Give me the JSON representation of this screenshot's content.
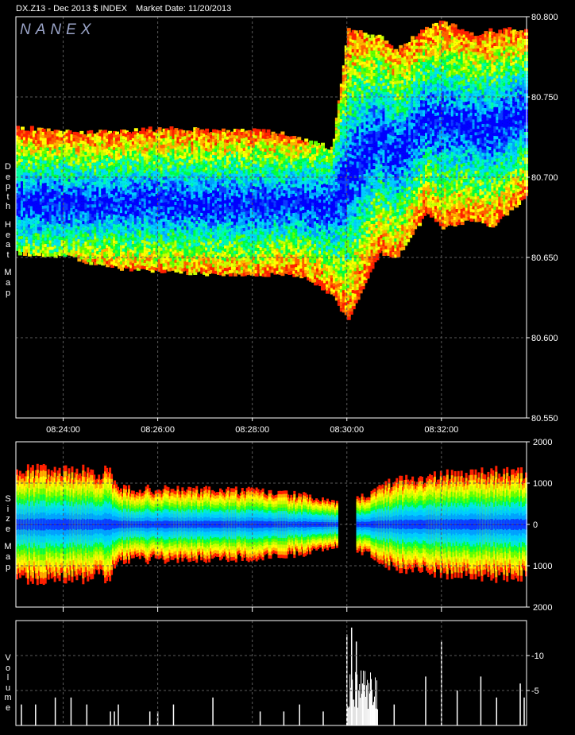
{
  "header": {
    "symbol": "DX.Z13 - Dec 2013 $ INDEX",
    "market_date": "Market Date: 11/20/2013"
  },
  "logo_text": "NANEX",
  "panels": {
    "depth": {
      "label_words": [
        "Depth",
        "Heat",
        "Map"
      ]
    },
    "size": {
      "label_words": [
        "Size",
        "Map"
      ]
    },
    "volume": {
      "label_words": [
        "Volume"
      ]
    }
  },
  "colors": {
    "background": "#000000",
    "frame": "#ffffff",
    "grid": "#5a5a5a",
    "heat_scale": [
      "#0000ff",
      "#0a3cff",
      "#00a0ff",
      "#00ccff",
      "#00e6e6",
      "#00ffa0",
      "#00ff40",
      "#60ff00",
      "#c8ff00",
      "#ffff00",
      "#ffb000",
      "#ff6000",
      "#ff2000"
    ]
  },
  "chart_data": [
    {
      "type": "heatmap",
      "title": "Depth Heat Map",
      "x_ticks": [
        "08:24:00",
        "08:26:00",
        "08:28:00",
        "08:30:00",
        "08:32:00"
      ],
      "y_ticks": [
        "80.800",
        "80.750",
        "80.700",
        "80.650",
        "80.600",
        "80.550"
      ],
      "ylim": [
        80.55,
        80.8
      ],
      "xlim": [
        "08:23:00",
        "08:33:48"
      ],
      "grid": true,
      "series": [
        {
          "time": "08:23:00",
          "band_low": 80.654,
          "band_high": 80.728,
          "center": 80.683
        },
        {
          "time": "08:24:00",
          "band_low": 80.652,
          "band_high": 80.726,
          "center": 80.682
        },
        {
          "time": "08:25:00",
          "band_low": 80.645,
          "band_high": 80.725,
          "center": 80.683
        },
        {
          "time": "08:26:00",
          "band_low": 80.643,
          "band_high": 80.728,
          "center": 80.683
        },
        {
          "time": "08:27:00",
          "band_low": 80.641,
          "band_high": 80.727,
          "center": 80.682
        },
        {
          "time": "08:28:00",
          "band_low": 80.641,
          "band_high": 80.727,
          "center": 80.682
        },
        {
          "time": "08:29:00",
          "band_low": 80.64,
          "band_high": 80.722,
          "center": 80.683
        },
        {
          "time": "08:29:40",
          "band_low": 80.628,
          "band_high": 80.715,
          "center": 80.68
        },
        {
          "time": "08:30:00",
          "band_low": 80.612,
          "band_high": 80.79,
          "center": 80.7
        },
        {
          "time": "08:30:40",
          "band_low": 80.655,
          "band_high": 80.785,
          "center": 80.725
        },
        {
          "time": "08:31:00",
          "band_low": 80.65,
          "band_high": 80.776,
          "center": 80.711
        },
        {
          "time": "08:31:40",
          "band_low": 80.68,
          "band_high": 80.79,
          "center": 80.735
        },
        {
          "time": "08:32:00",
          "band_low": 80.67,
          "band_high": 80.795,
          "center": 80.732
        },
        {
          "time": "08:32:40",
          "band_low": 80.675,
          "band_high": 80.785,
          "center": 80.73
        },
        {
          "time": "08:33:00",
          "band_low": 80.67,
          "band_high": 80.788,
          "center": 80.728
        },
        {
          "time": "08:33:48",
          "band_low": 80.69,
          "band_high": 80.79,
          "center": 80.74
        }
      ]
    },
    {
      "type": "heatmap",
      "title": "Size Map",
      "x_ticks": [
        "08:24:00",
        "08:26:00",
        "08:28:00",
        "08:30:00",
        "08:32:00"
      ],
      "y_ticks": [
        "2000",
        "1000",
        "0",
        "1000",
        "2000"
      ],
      "ylim": [
        -2000,
        2000
      ],
      "grid": true,
      "series": [
        {
          "time": "08:23:00",
          "size": 1300
        },
        {
          "time": "08:25:00",
          "size": 1250
        },
        {
          "time": "08:25:05",
          "size": 850
        },
        {
          "time": "08:27:00",
          "size": 820
        },
        {
          "time": "08:28:00",
          "size": 800
        },
        {
          "time": "08:29:00",
          "size": 700
        },
        {
          "time": "08:29:46",
          "size": 500
        },
        {
          "time": "08:30:10",
          "size": 0
        },
        {
          "time": "08:30:12",
          "size": 600
        },
        {
          "time": "08:31:00",
          "size": 1050
        },
        {
          "time": "08:32:00",
          "size": 1150
        },
        {
          "time": "08:33:00",
          "size": 1250
        },
        {
          "time": "08:33:48",
          "size": 1200
        }
      ]
    },
    {
      "type": "bar",
      "title": "Volume",
      "y_ticks": [
        "10",
        "5"
      ],
      "ylim": [
        0,
        15
      ],
      "grid": true,
      "bars": [
        {
          "time": "08:23:07",
          "v": 3
        },
        {
          "time": "08:23:25",
          "v": 3
        },
        {
          "time": "08:23:50",
          "v": 4
        },
        {
          "time": "08:24:10",
          "v": 4
        },
        {
          "time": "08:24:30",
          "v": 3
        },
        {
          "time": "08:25:00",
          "v": 2
        },
        {
          "time": "08:25:05",
          "v": 2
        },
        {
          "time": "08:25:10",
          "v": 3
        },
        {
          "time": "08:25:50",
          "v": 2
        },
        {
          "time": "08:26:00",
          "v": 2
        },
        {
          "time": "08:26:20",
          "v": 3
        },
        {
          "time": "08:27:10",
          "v": 4
        },
        {
          "time": "08:28:10",
          "v": 2
        },
        {
          "time": "08:28:40",
          "v": 2
        },
        {
          "time": "08:29:00",
          "v": 3
        },
        {
          "time": "08:29:30",
          "v": 2
        },
        {
          "time": "08:30:00",
          "v": 13
        },
        {
          "time": "08:30:06",
          "v": 14
        },
        {
          "time": "08:30:12",
          "v": 12
        },
        {
          "time": "08:30:20",
          "v": 6
        },
        {
          "time": "08:30:30",
          "v": 5
        },
        {
          "time": "08:31:00",
          "v": 3
        },
        {
          "time": "08:31:40",
          "v": 7
        },
        {
          "time": "08:32:00",
          "v": 12
        },
        {
          "time": "08:32:20",
          "v": 5
        },
        {
          "time": "08:32:50",
          "v": 7
        },
        {
          "time": "08:33:10",
          "v": 4
        },
        {
          "time": "08:33:40",
          "v": 6
        },
        {
          "time": "08:33:45",
          "v": 4
        }
      ]
    }
  ]
}
